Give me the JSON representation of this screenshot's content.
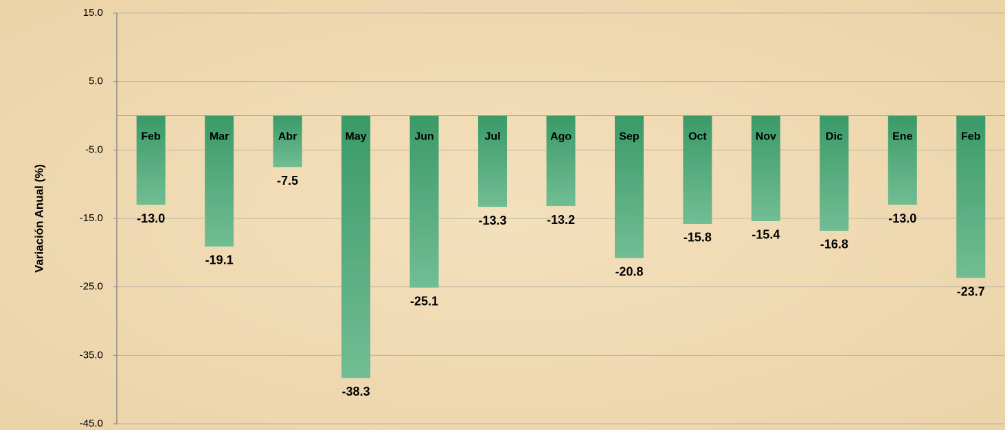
{
  "chart_data": {
    "type": "bar",
    "y_axis_label": "Variación Anual (%)",
    "categories": [
      "Feb",
      "Mar",
      "Abr",
      "May",
      "Jun",
      "Jul",
      "Ago",
      "Sep",
      "Oct",
      "Nov",
      "Dic",
      "Ene",
      "Feb"
    ],
    "values": [
      -13.0,
      -19.1,
      -7.5,
      -38.3,
      -25.1,
      -13.3,
      -13.2,
      -20.8,
      -15.8,
      -15.4,
      -16.8,
      -13.0,
      -23.7
    ],
    "value_labels": [
      "-13.0",
      "-19.1",
      "-7.5",
      "-38.3",
      "-25.1",
      "-13.3",
      "-13.2",
      "-20.8",
      "-15.8",
      "-15.4",
      "-16.8",
      "-13.0",
      "-23.7"
    ],
    "color": "#3a9a68",
    "ylim": [
      -45,
      15
    ],
    "yticks": [
      {
        "value": -45,
        "label": "-45.0"
      },
      {
        "value": -35,
        "label": "-35.0"
      },
      {
        "value": -25,
        "label": "-25.0"
      },
      {
        "value": -15,
        "label": "-15.0"
      },
      {
        "value": -5,
        "label": "-5.0"
      },
      {
        "value": 5,
        "label": "5.0"
      },
      {
        "value": 15,
        "label": "15.0"
      }
    ],
    "grid": true
  }
}
